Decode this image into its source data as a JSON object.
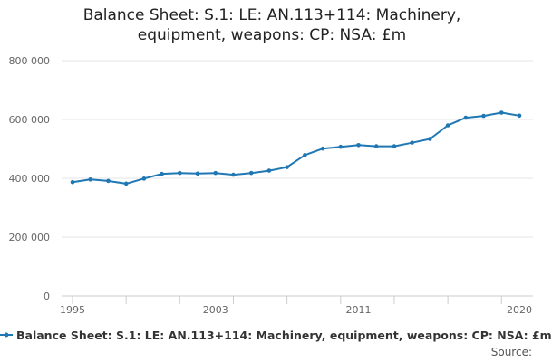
{
  "chart_data": {
    "type": "line",
    "title_lines": [
      "Balance Sheet: S.1: LE: AN.113+114: Machinery,",
      "equipment, weapons: CP: NSA: £m"
    ],
    "xlabel": "",
    "ylabel": "",
    "xlim": [
      1995,
      2020
    ],
    "ylim": [
      0,
      800000
    ],
    "x_ticks": [
      1995,
      2003,
      2011,
      2020
    ],
    "y_ticks": [
      0,
      200000,
      400000,
      600000,
      800000
    ],
    "y_tick_labels": [
      "0",
      "200 000",
      "400 000",
      "600 000",
      "800 000"
    ],
    "grid": "horizontal",
    "legend_position": "bottom",
    "series": [
      {
        "name": "Balance Sheet: S.1: LE: AN.113+114: Machinery, equipment, weapons: CP: NSA: £m",
        "color": "#1f77b4",
        "x": [
          1995,
          1996,
          1997,
          1998,
          1999,
          2000,
          2001,
          2002,
          2003,
          2004,
          2005,
          2006,
          2007,
          2008,
          2009,
          2010,
          2011,
          2012,
          2013,
          2014,
          2015,
          2016,
          2017,
          2018,
          2019,
          2020
        ],
        "values": [
          387000,
          396000,
          391000,
          382000,
          399000,
          415000,
          418000,
          416000,
          418000,
          412000,
          418000,
          426000,
          438000,
          479000,
          501000,
          507000,
          513000,
          509000,
          509000,
          521000,
          534000,
          580000,
          606000,
          612000,
          623000,
          613000
        ]
      }
    ]
  },
  "source_label": "Source:"
}
